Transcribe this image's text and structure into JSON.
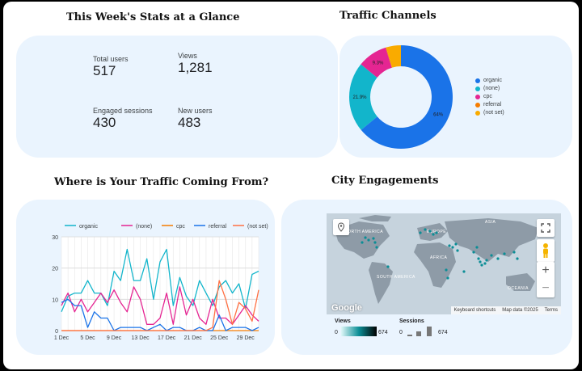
{
  "stats_section": {
    "title": "This Week's Stats at a Glance",
    "items": [
      {
        "label": "Total users",
        "value": "517"
      },
      {
        "label": "Views",
        "value": "1,281"
      },
      {
        "label": "Engaged sessions",
        "value": "430"
      },
      {
        "label": "New users",
        "value": "483"
      }
    ]
  },
  "traffic_channels": {
    "title": "Traffic Channels",
    "chart_data": {
      "type": "pie",
      "labels": [
        "organic",
        "(none)",
        "cpc",
        "referral",
        "(not set)"
      ],
      "values": [
        64,
        21.9,
        9.3,
        0.2,
        4.6
      ],
      "data_labels": [
        "64%",
        "21.9%",
        "9.3%",
        "",
        ""
      ],
      "colors": [
        "#1a73e8",
        "#12b5cb",
        "#e52592",
        "#f57c00",
        "#f9ab00"
      ],
      "legend_position": "right"
    }
  },
  "traffic_sources": {
    "title": "Where is Your Traffic Coming From?",
    "chart_data": {
      "type": "line",
      "categories": [
        "1 Dec",
        "2 Dec",
        "3 Dec",
        "4 Dec",
        "5 Dec",
        "6 Dec",
        "7 Dec",
        "8 Dec",
        "9 Dec",
        "10 Dec",
        "11 Dec",
        "12 Dec",
        "13 Dec",
        "14 Dec",
        "15 Dec",
        "16 Dec",
        "17 Dec",
        "18 Dec",
        "19 Dec",
        "20 Dec",
        "21 Dec",
        "22 Dec",
        "23 Dec",
        "24 Dec",
        "25 Dec",
        "26 Dec",
        "27 Dec",
        "28 Dec",
        "29 Dec",
        "30 Dec",
        "31 Dec"
      ],
      "tick_labels": [
        "1 Dec",
        "5 Dec",
        "9 Dec",
        "13 Dec",
        "17 Dec",
        "21 Dec",
        "25 Dec",
        "29 Dec"
      ],
      "ylim": [
        0,
        30
      ],
      "y_ticks": [
        0,
        10,
        20,
        30
      ],
      "grid": true,
      "legend_position": "top",
      "series": [
        {
          "name": "organic",
          "color": "#12b5cb",
          "values": [
            6,
            11,
            12,
            12,
            16,
            12,
            12,
            8,
            19,
            16,
            26,
            16,
            16,
            23,
            10,
            22,
            26,
            8,
            17,
            11,
            8,
            16,
            12,
            8,
            14,
            16,
            12,
            15,
            7,
            18,
            19
          ]
        },
        {
          "name": "(none)",
          "color": "#e52592",
          "values": [
            8,
            12,
            6,
            10,
            6,
            9,
            12,
            9,
            13,
            9,
            6,
            14,
            10,
            2,
            2,
            4,
            12,
            2,
            14,
            5,
            10,
            4,
            2,
            10,
            4,
            4,
            2,
            5,
            8,
            5,
            3
          ]
        },
        {
          "name": "cpc",
          "color": "#f57c00",
          "values": [
            0,
            0,
            0,
            0,
            0,
            0,
            0,
            0,
            0,
            0,
            0,
            0,
            0,
            0,
            0,
            0,
            0,
            0,
            0,
            0,
            0,
            0,
            0,
            0,
            0,
            0,
            0,
            0,
            0,
            0,
            0
          ]
        },
        {
          "name": "referral",
          "color": "#1a73e8",
          "values": [
            9,
            10,
            8,
            8,
            1,
            6,
            4,
            4,
            0,
            1,
            1,
            1,
            1,
            0,
            1,
            2,
            0,
            1,
            1,
            0,
            0,
            1,
            0,
            0,
            5,
            0,
            1,
            1,
            1,
            0,
            1
          ]
        },
        {
          "name": "(not set)",
          "color": "#ff7043",
          "values": [
            0,
            0,
            0,
            0,
            0,
            0,
            0,
            0,
            0,
            0,
            0,
            0,
            0,
            0,
            0,
            0,
            0,
            0,
            0,
            0,
            0,
            0,
            0,
            1,
            16,
            10,
            2,
            9,
            7,
            3,
            13
          ]
        }
      ]
    }
  },
  "city_engagements": {
    "title": "City Engagements",
    "map_labels": {
      "north_america": "NORTH AMERICA",
      "south_america": "SOUTH AMERICA",
      "europe": "EUROPE",
      "africa": "AFRICA",
      "asia": "ASIA",
      "oceania": "OCEANIA"
    },
    "attribution": {
      "shortcuts": "Keyboard shortcuts",
      "map_data": "Map data ©2025",
      "terms": "Terms"
    },
    "google_logo": "Google",
    "zoom_in": "+",
    "zoom_out": "−",
    "views_scale": {
      "title": "Views",
      "min": "0",
      "max": "674"
    },
    "sessions_scale": {
      "title": "Sessions",
      "min": "0",
      "max": "674"
    },
    "marker_color": "#0b8e96"
  }
}
